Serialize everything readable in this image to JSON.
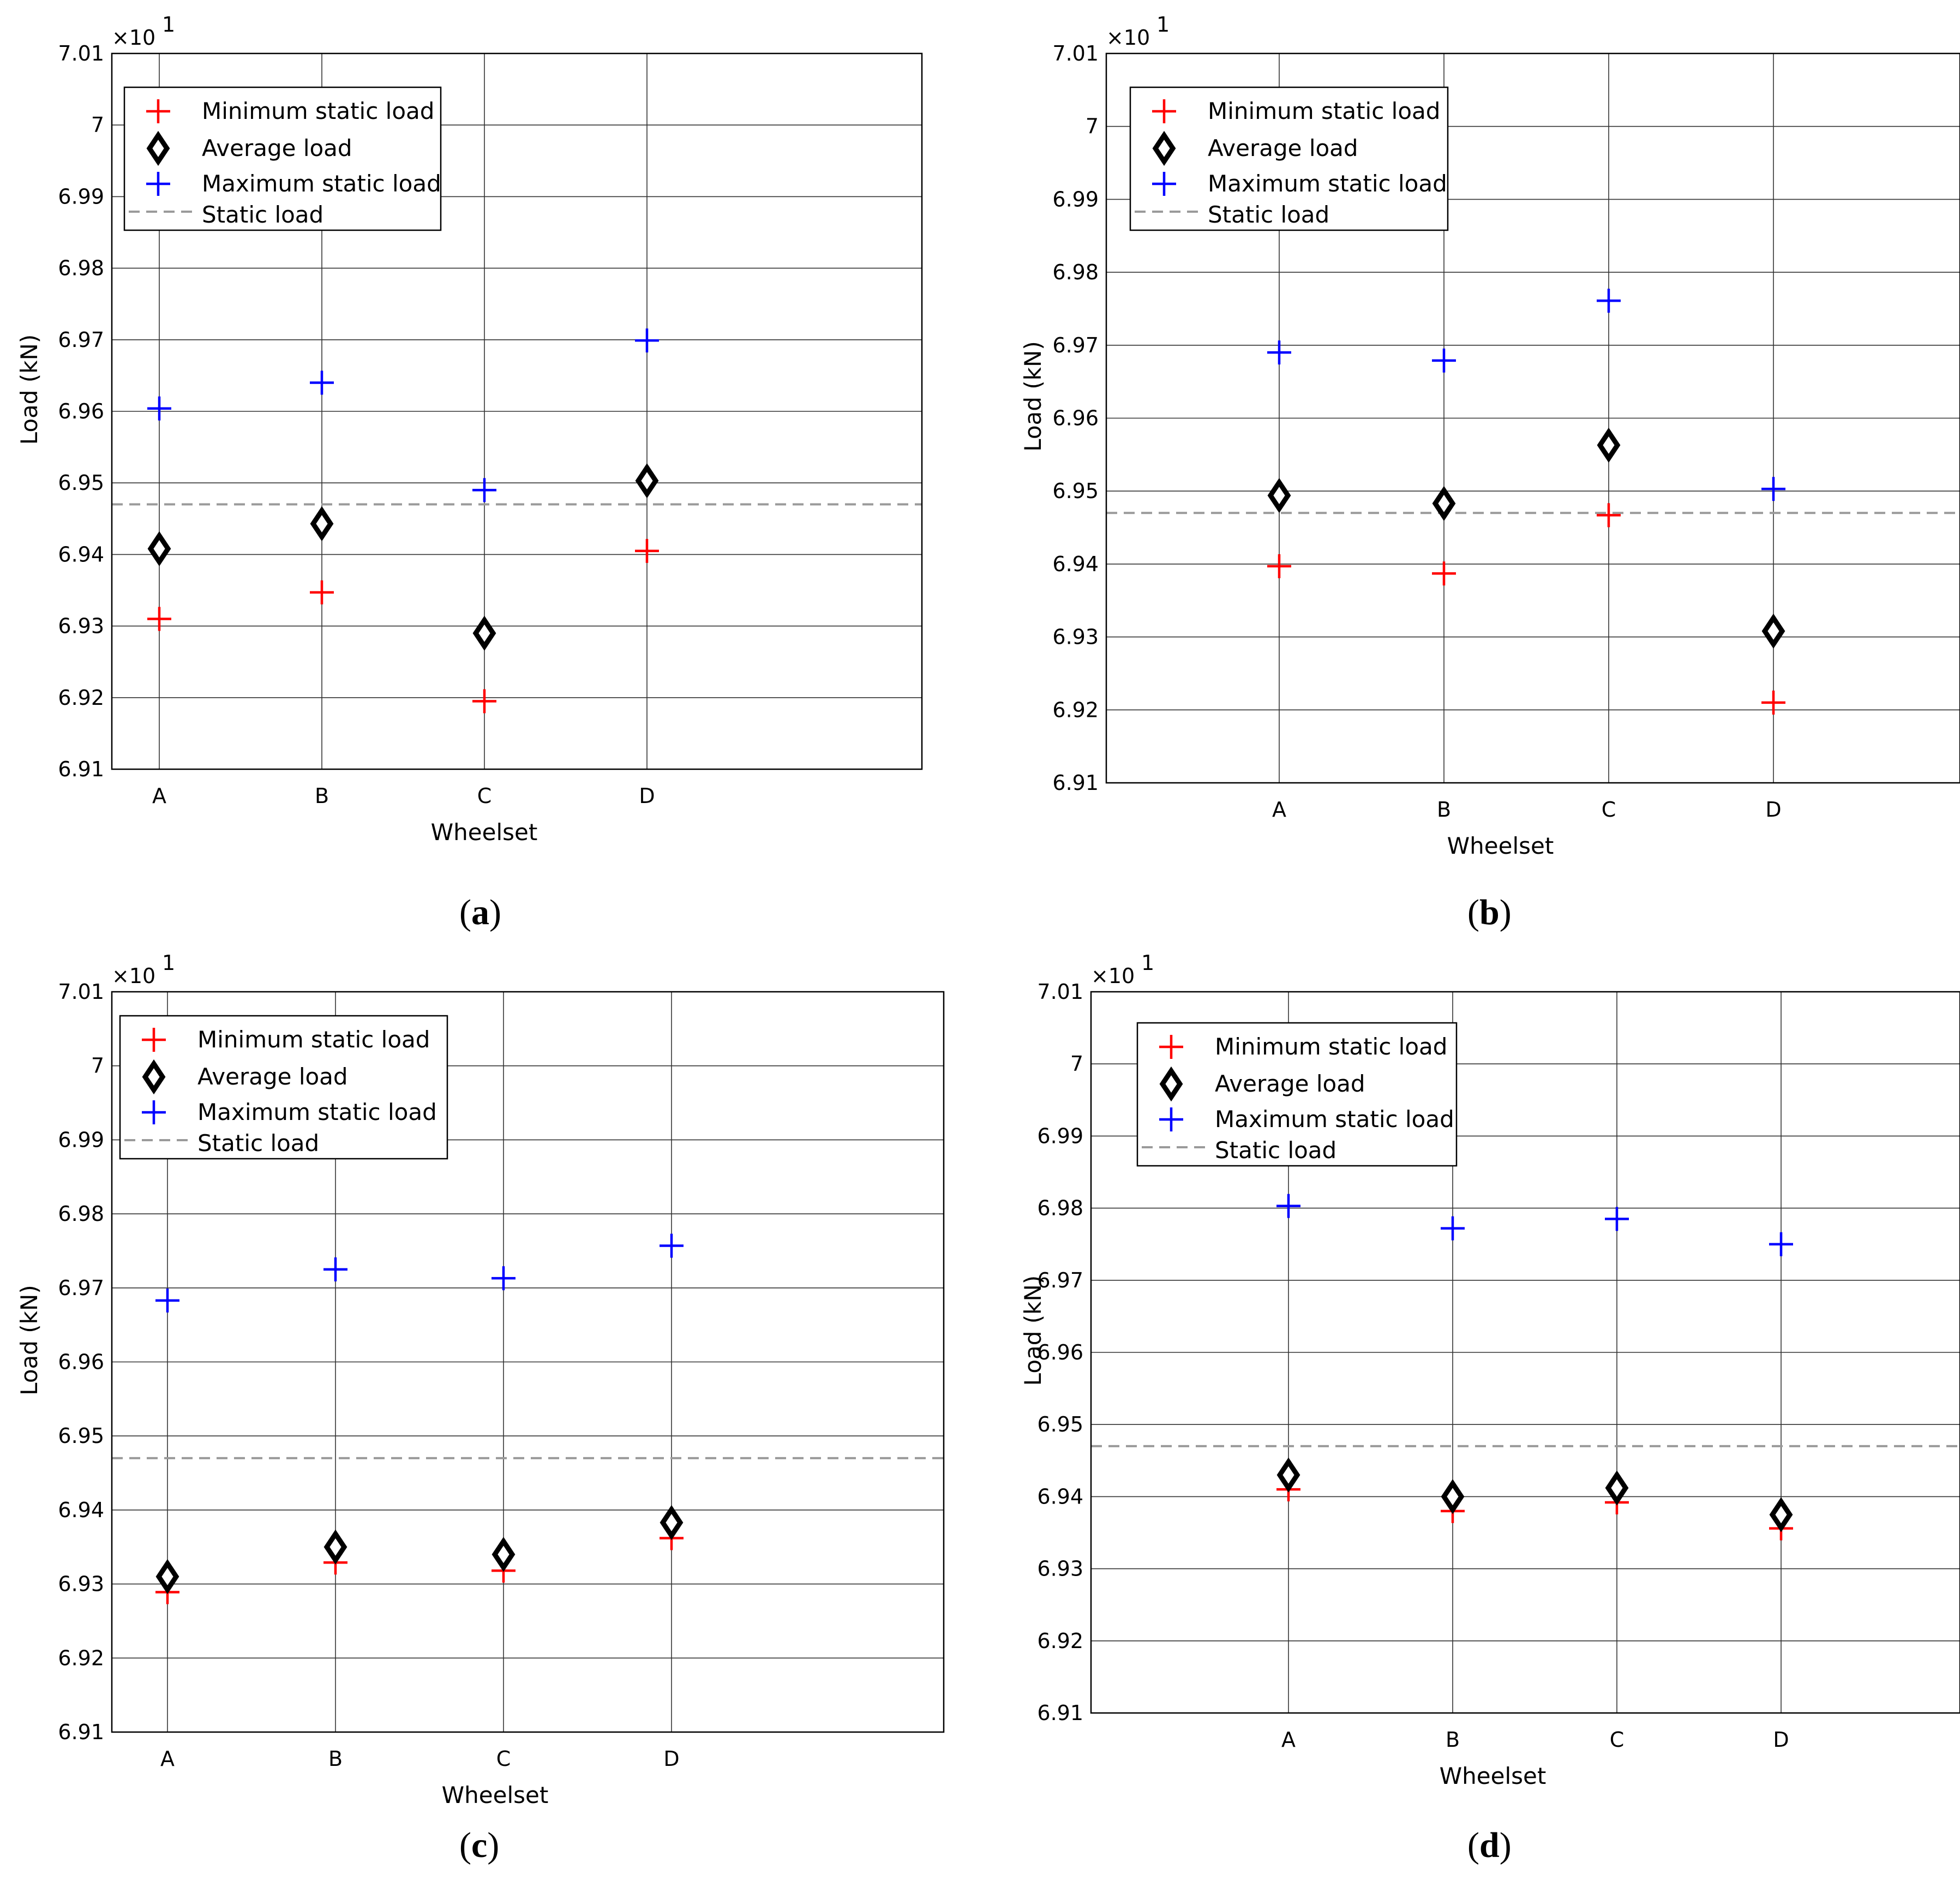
{
  "chart_data": [
    {
      "type": "scatter",
      "panel": "a",
      "caption": "a",
      "categories": [
        "A",
        "B",
        "C",
        "D"
      ],
      "xlabel": "Wheelset",
      "ylabel": "Load (kN)",
      "ylim": [
        6.91,
        7.01
      ],
      "yticks": [
        "6.91",
        "6.92",
        "6.93",
        "6.94",
        "6.95",
        "6.96",
        "6.97",
        "6.98",
        "6.99",
        "7",
        "7.01"
      ],
      "exponent_label": "×10",
      "exponent_power": "1",
      "legend": [
        "Minimum static load",
        "Average load",
        "Maximum static load",
        "Static load"
      ],
      "series": [
        {
          "name": "Minimum static load",
          "color": "#ff0000",
          "marker": "plus",
          "values": [
            6.931,
            6.9347,
            6.9195,
            6.9405
          ]
        },
        {
          "name": "Average load",
          "color": "#000000",
          "marker": "diamond",
          "values": [
            6.9408,
            6.9443,
            6.929,
            6.9503
          ]
        },
        {
          "name": "Maximum static load",
          "color": "#0000ff",
          "marker": "plus",
          "values": [
            6.9604,
            6.964,
            6.949,
            6.9699
          ]
        }
      ],
      "static_load": 6.947,
      "grid": true
    },
    {
      "type": "scatter",
      "panel": "b",
      "caption": "b",
      "categories": [
        "A",
        "B",
        "C",
        "D"
      ],
      "xlabel": "Wheelset",
      "ylabel": "Load (kN)",
      "ylim": [
        6.91,
        7.01
      ],
      "yticks": [
        "6.91",
        "6.92",
        "6.93",
        "6.94",
        "6.95",
        "6.96",
        "6.97",
        "6.98",
        "6.99",
        "7",
        "7.01"
      ],
      "exponent_label": "×10",
      "exponent_power": "1",
      "legend": [
        "Minimum static load",
        "Average load",
        "Maximum static load",
        "Static load"
      ],
      "series": [
        {
          "name": "Minimum static load",
          "color": "#ff0000",
          "marker": "plus",
          "values": [
            6.9397,
            6.9387,
            6.9467,
            6.921
          ]
        },
        {
          "name": "Average load",
          "color": "#000000",
          "marker": "diamond",
          "values": [
            6.9494,
            6.9483,
            6.9563,
            6.9308
          ]
        },
        {
          "name": "Maximum static load",
          "color": "#0000ff",
          "marker": "plus",
          "values": [
            6.969,
            6.9679,
            6.9761,
            6.9503
          ]
        }
      ],
      "static_load": 6.947,
      "grid": true
    },
    {
      "type": "scatter",
      "panel": "c",
      "caption": "c",
      "categories": [
        "A",
        "B",
        "C",
        "D"
      ],
      "xlabel": "Wheelset",
      "ylabel": "Load (kN)",
      "ylim": [
        6.91,
        7.01
      ],
      "yticks": [
        "6.91",
        "6.92",
        "6.93",
        "6.94",
        "6.95",
        "6.96",
        "6.97",
        "6.98",
        "6.99",
        "7",
        "7.01"
      ],
      "exponent_label": "×10",
      "exponent_power": "1",
      "legend": [
        "Minimum static load",
        "Average load",
        "Maximum static load",
        "Static load"
      ],
      "series": [
        {
          "name": "Minimum static load",
          "color": "#ff0000",
          "marker": "plus",
          "values": [
            6.9289,
            6.9329,
            6.9318,
            6.9362
          ]
        },
        {
          "name": "Average load",
          "color": "#000000",
          "marker": "diamond",
          "values": [
            6.931,
            6.935,
            6.934,
            6.9383
          ]
        },
        {
          "name": "Maximum static load",
          "color": "#0000ff",
          "marker": "plus",
          "values": [
            6.9683,
            6.9725,
            6.9713,
            6.9757
          ]
        }
      ],
      "static_load": 6.947,
      "grid": true
    },
    {
      "type": "scatter",
      "panel": "d",
      "caption": "d",
      "categories": [
        "A",
        "B",
        "C",
        "D"
      ],
      "xlabel": "Wheelset",
      "ylabel": "Load (kN)",
      "ylim": [
        6.91,
        7.01
      ],
      "yticks": [
        "6.91",
        "6.92",
        "6.93",
        "6.94",
        "6.95",
        "6.96",
        "6.97",
        "6.98",
        "6.99",
        "7",
        "7.01"
      ],
      "exponent_label": "×10",
      "exponent_power": "1",
      "legend": [
        "Minimum static load",
        "Average load",
        "Maximum static load",
        "Static load"
      ],
      "series": [
        {
          "name": "Minimum static load",
          "color": "#ff0000",
          "marker": "plus",
          "values": [
            6.941,
            6.938,
            6.9392,
            6.9356
          ]
        },
        {
          "name": "Average load",
          "color": "#000000",
          "marker": "diamond",
          "values": [
            6.943,
            6.94,
            6.9412,
            6.9375
          ]
        },
        {
          "name": "Maximum static load",
          "color": "#0000ff",
          "marker": "plus",
          "values": [
            6.9803,
            6.9772,
            6.9785,
            6.975
          ]
        }
      ],
      "static_load": 6.947,
      "grid": true
    }
  ]
}
